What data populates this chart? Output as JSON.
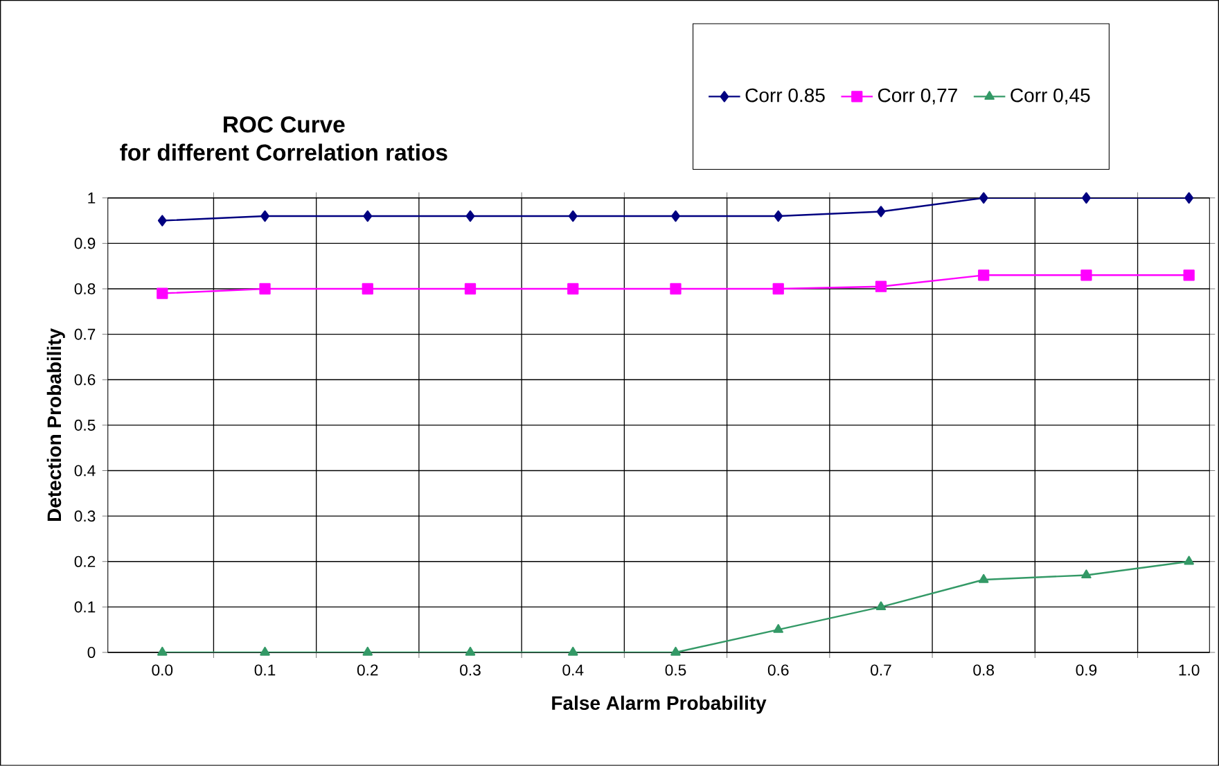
{
  "chart_data": {
    "type": "line",
    "title": "ROC Curve",
    "subtitle": "for different Correlation ratios",
    "xlabel": "False Alarm Probability",
    "ylabel": "Detection Probability",
    "categories": [
      "0.0",
      "0.1",
      "0.2",
      "0.3",
      "0.4",
      "0.5",
      "0.6",
      "0.7",
      "0.8",
      "0.9",
      "1.0"
    ],
    "series": [
      {
        "name": "Corr 0.85",
        "color": "#000080",
        "marker": "diamond",
        "values": [
          0.95,
          0.96,
          0.96,
          0.96,
          0.96,
          0.96,
          0.96,
          0.97,
          1,
          1,
          1
        ]
      },
      {
        "name": "Corr 0,77",
        "color": "#ff00ff",
        "marker": "square",
        "values": [
          0.79,
          0.8,
          0.8,
          0.8,
          0.8,
          0.8,
          0.8,
          0.805,
          0.83,
          0.83,
          0.83
        ]
      },
      {
        "name": "Corr 0,45",
        "color": "#339966",
        "marker": "triangle",
        "values": [
          0,
          0,
          0,
          0,
          0,
          0,
          0.05,
          0.1,
          0.16,
          0.17,
          0.2
        ]
      }
    ],
    "ylim": [
      0,
      1
    ],
    "yticks": [
      0,
      0.1,
      0.2,
      0.3,
      0.4,
      0.5,
      0.6,
      0.7,
      0.8,
      0.9,
      1
    ],
    "grid": true,
    "legend": "top right",
    "line_style": "solid"
  }
}
